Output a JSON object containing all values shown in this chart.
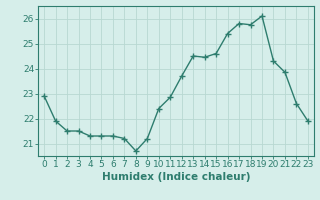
{
  "x": [
    0,
    1,
    2,
    3,
    4,
    5,
    6,
    7,
    8,
    9,
    10,
    11,
    12,
    13,
    14,
    15,
    16,
    17,
    18,
    19,
    20,
    21,
    22,
    23
  ],
  "y": [
    22.9,
    21.9,
    21.5,
    21.5,
    21.3,
    21.3,
    21.3,
    21.2,
    20.7,
    21.2,
    22.4,
    22.85,
    23.7,
    24.5,
    24.45,
    24.6,
    25.4,
    25.8,
    25.75,
    26.1,
    24.3,
    23.85,
    22.6,
    21.9
  ],
  "line_color": "#2e7d6e",
  "marker": "+",
  "marker_size": 4,
  "bg_color": "#d6eeea",
  "grid_color": "#b8d8d2",
  "xlabel": "Humidex (Indice chaleur)",
  "xlim": [
    -0.5,
    23.5
  ],
  "ylim": [
    20.5,
    26.5
  ],
  "yticks": [
    21,
    22,
    23,
    24,
    25,
    26
  ],
  "xticks": [
    0,
    1,
    2,
    3,
    4,
    5,
    6,
    7,
    8,
    9,
    10,
    11,
    12,
    13,
    14,
    15,
    16,
    17,
    18,
    19,
    20,
    21,
    22,
    23
  ],
  "tick_fontsize": 6.5,
  "xlabel_fontsize": 7.5,
  "line_width": 1.0
}
